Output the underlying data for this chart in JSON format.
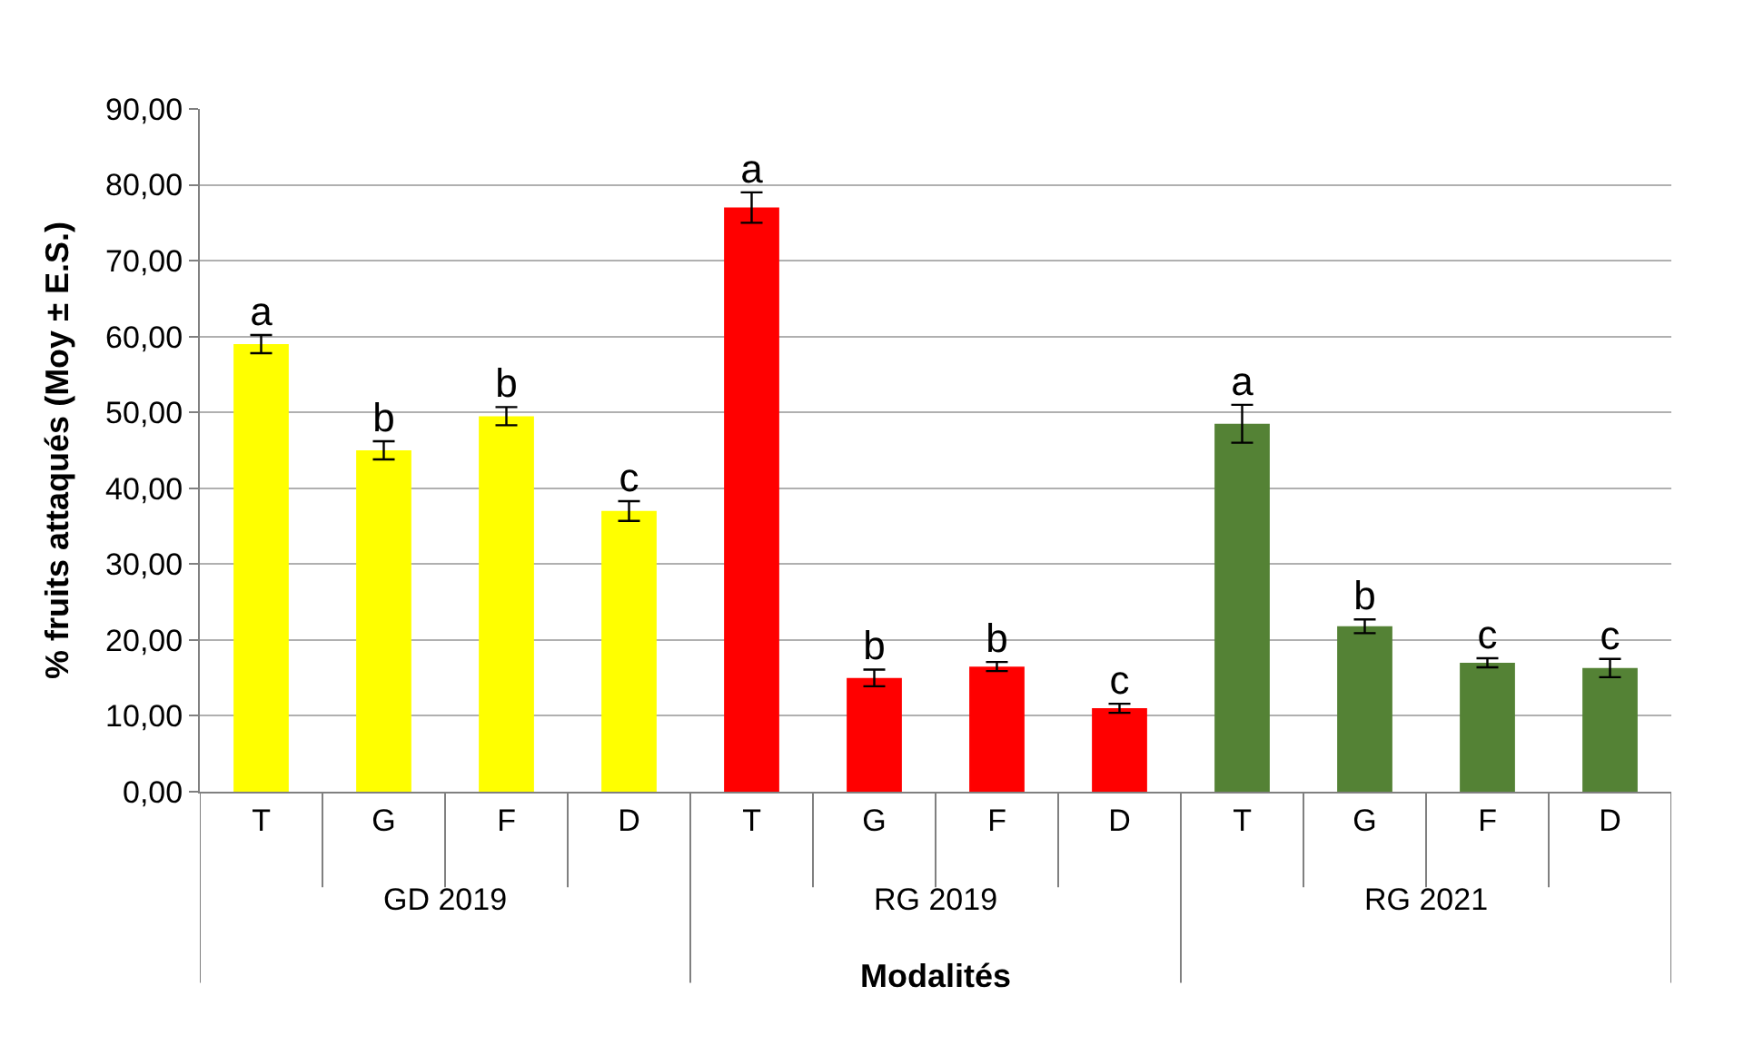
{
  "chart_data": {
    "type": "bar",
    "xlabel": "Modalités",
    "ylabel": "% fruits attaqués (Moy ± E.S.)",
    "categories": [
      "T",
      "G",
      "F",
      "D",
      "T",
      "G",
      "F",
      "D",
      "T",
      "G",
      "F",
      "D"
    ],
    "values": [
      59.0,
      45.0,
      49.5,
      37.0,
      77.0,
      15.0,
      16.5,
      11.0,
      48.5,
      21.8,
      17.0,
      16.3
    ],
    "colors": [
      "#ffff00",
      "#ffff00",
      "#ffff00",
      "#ffff00",
      "#ff0000",
      "#ff0000",
      "#ff0000",
      "#ff0000",
      "#548235",
      "#548235",
      "#548235",
      "#548235"
    ],
    "errors": [
      1.2,
      1.2,
      1.2,
      1.3,
      2.0,
      1.1,
      0.6,
      0.6,
      2.5,
      0.9,
      0.6,
      1.2
    ],
    "value_labels": [
      "a",
      "b",
      "b",
      "c",
      "a",
      "b",
      "b",
      "c",
      "a",
      "b",
      "c",
      "c"
    ],
    "annotations": [
      "GD 2019",
      "RG 2019",
      "RG 2021"
    ],
    "ylim": [
      0,
      90
    ],
    "yticks": [
      {
        "value": 0,
        "label": "0,00"
      },
      {
        "value": 10,
        "label": "10,00"
      },
      {
        "value": 20,
        "label": "20,00"
      },
      {
        "value": 30,
        "label": "30,00"
      },
      {
        "value": 40,
        "label": "40,00"
      },
      {
        "value": 50,
        "label": "50,00"
      },
      {
        "value": 60,
        "label": "60,00"
      },
      {
        "value": 70,
        "label": "70,00"
      },
      {
        "value": 80,
        "label": "80,00"
      },
      {
        "value": 90,
        "label": "90,00"
      }
    ],
    "grid": "y"
  }
}
